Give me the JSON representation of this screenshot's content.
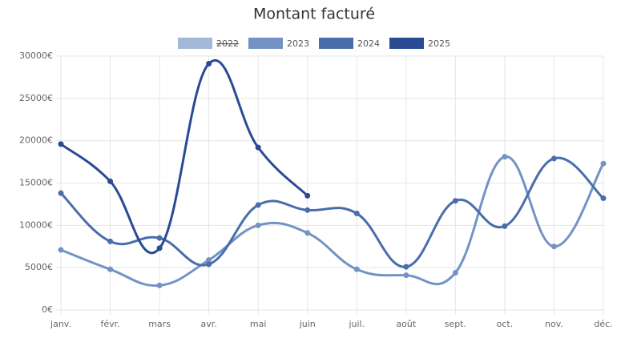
{
  "chart_data": {
    "type": "line",
    "title": "Montant facturé",
    "categories": [
      "janv.",
      "févr.",
      "mars",
      "avr.",
      "mai",
      "juin",
      "juil.",
      "août",
      "sept.",
      "oct.",
      "nov.",
      "déc."
    ],
    "series": [
      {
        "name": "2022",
        "color": "#a3b8d8",
        "hidden": true,
        "values": [
          null,
          null,
          null,
          null,
          null,
          null,
          null,
          null,
          null,
          null,
          null,
          null
        ]
      },
      {
        "name": "2023",
        "color": "#7393c4",
        "values": [
          7100,
          4800,
          2900,
          5900,
          10000,
          9100,
          4800,
          4100,
          4400,
          18100,
          7500,
          17300
        ]
      },
      {
        "name": "2024",
        "color": "#4a6dab",
        "values": [
          13800,
          8100,
          8500,
          5400,
          12400,
          11800,
          11400,
          5100,
          12900,
          9900,
          17900,
          13200
        ]
      },
      {
        "name": "2025",
        "color": "#2a4a94",
        "values": [
          19600,
          15200,
          7300,
          29100,
          19200,
          13500,
          null,
          null,
          null,
          null,
          null,
          null
        ]
      }
    ],
    "ylim": [
      0,
      30000
    ],
    "yticks": [
      {
        "value": 0,
        "label": "0€"
      },
      {
        "value": 5000,
        "label": "5000€"
      },
      {
        "value": 10000,
        "label": "10000€"
      },
      {
        "value": 15000,
        "label": "15000€"
      },
      {
        "value": 20000,
        "label": "20000€"
      },
      {
        "value": 25000,
        "label": "25000€"
      },
      {
        "value": 30000,
        "label": "30000€"
      }
    ],
    "grid": true,
    "legend": "top"
  }
}
